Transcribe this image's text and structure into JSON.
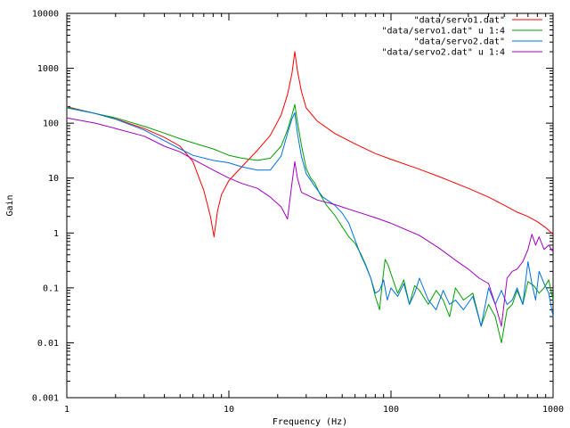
{
  "chart_data": {
    "type": "line",
    "title": "",
    "xlabel": "Frequency (Hz)",
    "ylabel": "Gain",
    "x_scale": "log",
    "y_scale": "log",
    "xlim": [
      1,
      1000
    ],
    "ylim": [
      0.001,
      10000
    ],
    "x_ticks": [
      {
        "value": 1,
        "label": "1"
      },
      {
        "value": 10,
        "label": "10"
      },
      {
        "value": 100,
        "label": "100"
      },
      {
        "value": 1000,
        "label": "1000"
      }
    ],
    "y_ticks": [
      {
        "value": 0.001,
        "label": "0.001"
      },
      {
        "value": 0.01,
        "label": "0.01"
      },
      {
        "value": 0.1,
        "label": "0.1"
      },
      {
        "value": 1,
        "label": "1"
      },
      {
        "value": 10,
        "label": "10"
      },
      {
        "value": 100,
        "label": "100"
      },
      {
        "value": 1000,
        "label": "1000"
      },
      {
        "value": 10000,
        "label": "10000"
      }
    ],
    "grid": false,
    "legend_position": "top-right",
    "series": [
      {
        "name": "\"data/servo1.dat\"",
        "color": "#ff0000",
        "points": [
          [
            1,
            200
          ],
          [
            1.5,
            150
          ],
          [
            2,
            120
          ],
          [
            3,
            80
          ],
          [
            4,
            55
          ],
          [
            5,
            38
          ],
          [
            6,
            20
          ],
          [
            7,
            6
          ],
          [
            7.7,
            2
          ],
          [
            8.1,
            0.85
          ],
          [
            8.5,
            2.5
          ],
          [
            9,
            5
          ],
          [
            10,
            9
          ],
          [
            12,
            16
          ],
          [
            15,
            32
          ],
          [
            18,
            60
          ],
          [
            21,
            140
          ],
          [
            23,
            330
          ],
          [
            24.5,
            800
          ],
          [
            25.5,
            2000
          ],
          [
            26.5,
            900
          ],
          [
            28,
            380
          ],
          [
            30,
            190
          ],
          [
            35,
            110
          ],
          [
            45,
            65
          ],
          [
            60,
            42
          ],
          [
            80,
            28
          ],
          [
            100,
            22
          ],
          [
            150,
            14.5
          ],
          [
            200,
            10.5
          ],
          [
            300,
            6.5
          ],
          [
            400,
            4.5
          ],
          [
            500,
            3.2
          ],
          [
            600,
            2.4
          ],
          [
            700,
            2.0
          ],
          [
            800,
            1.6
          ],
          [
            900,
            1.25
          ],
          [
            1000,
            0.95
          ]
        ]
      },
      {
        "name": "\"data/servo1.dat\" u 1:4",
        "color": "#00a000",
        "points": [
          [
            1,
            195
          ],
          [
            1.5,
            150
          ],
          [
            2,
            125
          ],
          [
            3,
            88
          ],
          [
            4,
            66
          ],
          [
            5,
            52
          ],
          [
            6,
            44
          ],
          [
            8,
            34
          ],
          [
            10,
            26
          ],
          [
            12,
            23
          ],
          [
            15,
            21
          ],
          [
            18,
            23
          ],
          [
            21,
            38
          ],
          [
            23,
            75
          ],
          [
            24.5,
            140
          ],
          [
            25.5,
            220
          ],
          [
            26.5,
            105
          ],
          [
            28,
            40
          ],
          [
            30,
            15
          ],
          [
            32,
            10
          ],
          [
            34,
            8
          ],
          [
            36,
            5.5
          ],
          [
            40,
            3.2
          ],
          [
            45,
            2.1
          ],
          [
            50,
            1.3
          ],
          [
            55,
            0.85
          ],
          [
            60,
            0.65
          ],
          [
            65,
            0.42
          ],
          [
            70,
            0.26
          ],
          [
            75,
            0.15
          ],
          [
            80,
            0.07
          ],
          [
            85,
            0.04
          ],
          [
            88,
            0.11
          ],
          [
            92,
            0.33
          ],
          [
            96,
            0.26
          ],
          [
            100,
            0.18
          ],
          [
            110,
            0.08
          ],
          [
            120,
            0.14
          ],
          [
            130,
            0.05
          ],
          [
            140,
            0.11
          ],
          [
            150,
            0.09
          ],
          [
            170,
            0.05
          ],
          [
            190,
            0.09
          ],
          [
            210,
            0.06
          ],
          [
            230,
            0.03
          ],
          [
            250,
            0.1
          ],
          [
            280,
            0.06
          ],
          [
            320,
            0.08
          ],
          [
            360,
            0.02
          ],
          [
            400,
            0.05
          ],
          [
            440,
            0.03
          ],
          [
            480,
            0.01
          ],
          [
            520,
            0.04
          ],
          [
            560,
            0.05
          ],
          [
            600,
            0.09
          ],
          [
            650,
            0.05
          ],
          [
            700,
            0.13
          ],
          [
            760,
            0.11
          ],
          [
            820,
            0.08
          ],
          [
            880,
            0.1
          ],
          [
            940,
            0.14
          ],
          [
            1000,
            0.06
          ]
        ]
      },
      {
        "name": "\"data/servo2.dat\"",
        "color": "#0070e0",
        "points": [
          [
            1,
            190
          ],
          [
            1.5,
            150
          ],
          [
            2,
            118
          ],
          [
            3,
            75
          ],
          [
            4,
            48
          ],
          [
            5,
            34
          ],
          [
            6,
            26
          ],
          [
            8,
            21
          ],
          [
            10,
            19
          ],
          [
            12,
            16
          ],
          [
            15,
            14
          ],
          [
            18,
            14
          ],
          [
            21,
            25
          ],
          [
            23,
            65
          ],
          [
            24.5,
            120
          ],
          [
            25.5,
            155
          ],
          [
            26.5,
            65
          ],
          [
            28,
            25
          ],
          [
            30,
            12
          ],
          [
            34,
            7
          ],
          [
            38,
            4.5
          ],
          [
            45,
            3.2
          ],
          [
            50,
            2.3
          ],
          [
            55,
            1.5
          ],
          [
            60,
            0.75
          ],
          [
            65,
            0.4
          ],
          [
            70,
            0.25
          ],
          [
            75,
            0.15
          ],
          [
            80,
            0.08
          ],
          [
            85,
            0.09
          ],
          [
            90,
            0.14
          ],
          [
            95,
            0.06
          ],
          [
            100,
            0.1
          ],
          [
            110,
            0.07
          ],
          [
            120,
            0.12
          ],
          [
            130,
            0.05
          ],
          [
            140,
            0.08
          ],
          [
            150,
            0.15
          ],
          [
            170,
            0.06
          ],
          [
            190,
            0.04
          ],
          [
            210,
            0.09
          ],
          [
            230,
            0.05
          ],
          [
            250,
            0.06
          ],
          [
            280,
            0.04
          ],
          [
            320,
            0.07
          ],
          [
            360,
            0.02
          ],
          [
            400,
            0.1
          ],
          [
            440,
            0.05
          ],
          [
            480,
            0.09
          ],
          [
            520,
            0.05
          ],
          [
            560,
            0.06
          ],
          [
            600,
            0.1
          ],
          [
            650,
            0.05
          ],
          [
            700,
            0.3
          ],
          [
            740,
            0.12
          ],
          [
            780,
            0.06
          ],
          [
            820,
            0.2
          ],
          [
            880,
            0.12
          ],
          [
            940,
            0.08
          ],
          [
            1000,
            0.03
          ]
        ]
      },
      {
        "name": "\"data/servo2.dat\" u 1:4",
        "color": "#a000c0",
        "points": [
          [
            1,
            125
          ],
          [
            1.5,
            100
          ],
          [
            2,
            80
          ],
          [
            3,
            58
          ],
          [
            4,
            38
          ],
          [
            5,
            30
          ],
          [
            6,
            22
          ],
          [
            8,
            14
          ],
          [
            10,
            10
          ],
          [
            12,
            8
          ],
          [
            15,
            6.5
          ],
          [
            18,
            4.5
          ],
          [
            21,
            3
          ],
          [
            23,
            1.8
          ],
          [
            24.5,
            8
          ],
          [
            25.5,
            20
          ],
          [
            26.5,
            10
          ],
          [
            28,
            5.5
          ],
          [
            30,
            5
          ],
          [
            35,
            4
          ],
          [
            45,
            3.3
          ],
          [
            60,
            2.5
          ],
          [
            80,
            1.9
          ],
          [
            100,
            1.5
          ],
          [
            150,
            0.9
          ],
          [
            200,
            0.52
          ],
          [
            250,
            0.32
          ],
          [
            300,
            0.22
          ],
          [
            350,
            0.15
          ],
          [
            400,
            0.12
          ],
          [
            440,
            0.05
          ],
          [
            480,
            0.02
          ],
          [
            520,
            0.15
          ],
          [
            560,
            0.2
          ],
          [
            600,
            0.22
          ],
          [
            650,
            0.3
          ],
          [
            700,
            0.5
          ],
          [
            740,
            0.95
          ],
          [
            780,
            0.6
          ],
          [
            820,
            0.85
          ],
          [
            880,
            0.5
          ],
          [
            940,
            0.6
          ],
          [
            1000,
            0.45
          ]
        ]
      }
    ]
  }
}
